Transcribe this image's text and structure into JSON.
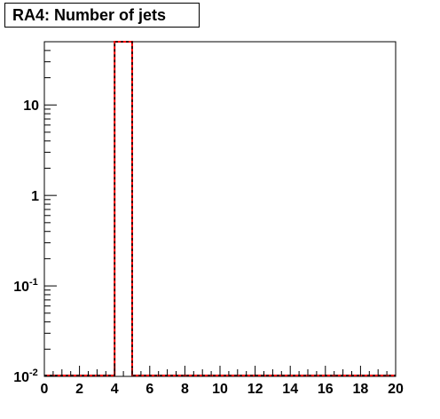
{
  "chart_data": {
    "type": "bar",
    "title": "RA4: Number of jets",
    "xlabel": "",
    "ylabel": "",
    "xlim": [
      0,
      20
    ],
    "ylim": [
      0.01,
      50
    ],
    "yscale": "log",
    "bin_width": 1,
    "x_ticks": [
      0,
      2,
      4,
      6,
      8,
      10,
      12,
      14,
      16,
      18,
      20
    ],
    "y_ticks": [
      {
        "value": 0.01,
        "base": "10",
        "exp": "-2"
      },
      {
        "value": 0.1,
        "base": "10",
        "exp": "-1"
      },
      {
        "value": 1,
        "base": "1",
        "exp": ""
      },
      {
        "value": 10,
        "base": "10",
        "exp": ""
      }
    ],
    "bins": [
      {
        "x_low": 4,
        "x_high": 5,
        "value": 50
      }
    ],
    "series": [
      {
        "style": "red solid outline with black dashed overlay",
        "color": "#ff0000"
      }
    ],
    "grid": false,
    "legend": "none"
  }
}
